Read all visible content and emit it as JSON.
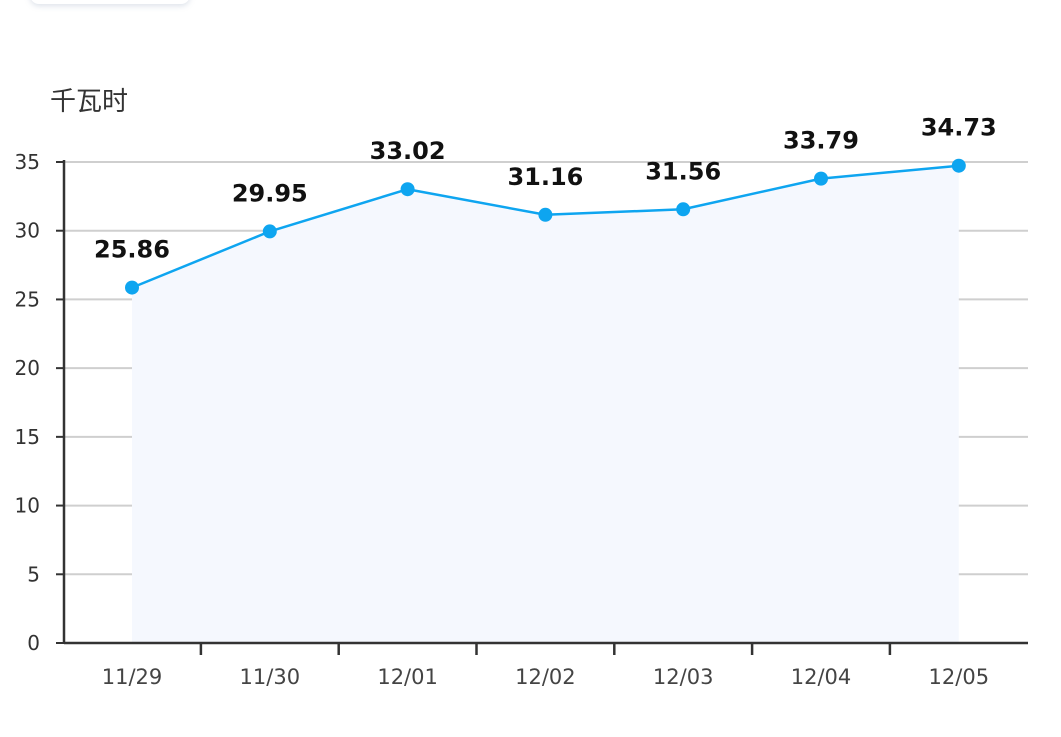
{
  "chart_data": {
    "type": "area",
    "ylabel": "千瓦时",
    "categories": [
      "11/29",
      "11/30",
      "12/01",
      "12/02",
      "12/03",
      "12/04",
      "12/05"
    ],
    "series": [
      {
        "values": [
          25.86,
          29.95,
          33.02,
          31.16,
          31.56,
          33.79,
          34.73
        ],
        "labels": [
          "25.86",
          "29.95",
          "33.02",
          "31.16",
          "31.56",
          "33.79",
          "34.73"
        ]
      }
    ],
    "yticks": [
      0,
      5,
      10,
      15,
      20,
      25,
      30,
      35
    ],
    "ylim": [
      0,
      35
    ],
    "grid": true,
    "colors": {
      "line": "#0ea5f0",
      "marker": "#0ea5f0",
      "area": "#f5f8fe",
      "grid": "#cfcfcf",
      "axis": "#333333"
    }
  }
}
